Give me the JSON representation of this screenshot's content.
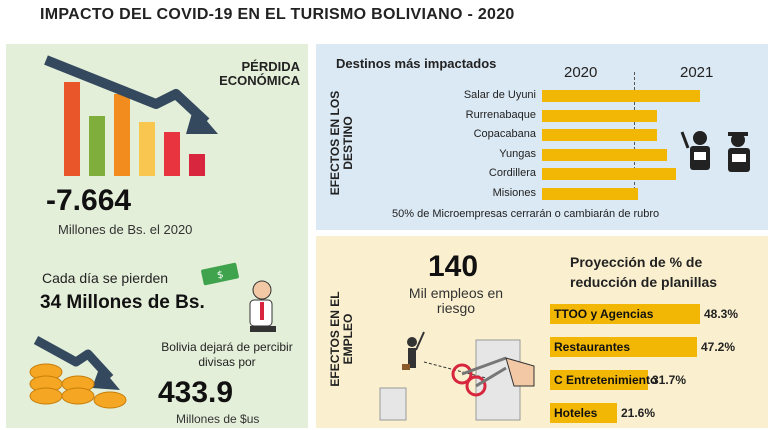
{
  "header": {
    "title": "IMPACTO DEL COVID-19 EN EL TURISMO BOLIVIANO - 2020"
  },
  "left": {
    "heading_line1": "PÉRDIDA",
    "heading_line2": "ECONÓMICA",
    "loss_value": "-7.664",
    "loss_caption": "Millones de Bs. el 2020",
    "daily_caption": "Cada día se pierden",
    "daily_value": "34 Millones de Bs.",
    "divisas_line1": "Bolivia dejará de percibir",
    "divisas_line2": "divisas por",
    "divisas_value": "433.9",
    "divisas_caption": "Millones de $us",
    "bar_colors": [
      "#e8562a",
      "#7fae3c",
      "#f28c1e",
      "#f9c74f",
      "#e8343f",
      "#d7263d"
    ]
  },
  "destinos": {
    "side_label_line1": "EFECTOS EN LOS",
    "side_label_line2": "DESTINO",
    "heading": "Destinos más impactados",
    "year_left": "2020",
    "year_right": "2021",
    "footnote": "50% de Microempresas cerrarán o cambiarán de rubro"
  },
  "empleo": {
    "side_label_line1": "EFECTOS EN EL",
    "side_label_line2": "EMPLEO",
    "jobs_value": "140",
    "jobs_caption_line1": "Mil empleos en",
    "jobs_caption_line2": "riesgo",
    "heading_line1": "Proyección de % de",
    "heading_line2": "reducción de planillas"
  },
  "chart_data": [
    {
      "type": "bar",
      "title": "Destinos más impactados",
      "orientation": "horizontal",
      "categories": [
        "Salar de Uyuni",
        "Rurrenabaque",
        "Copacabana",
        "Yungas",
        "Cordillera",
        "Misiones"
      ],
      "values": [
        1.0,
        0.73,
        0.73,
        0.79,
        0.85,
        0.61
      ],
      "xlabel": "",
      "ylabel": ""
    },
    {
      "type": "bar",
      "title": "Proyección de % de reducción de planillas",
      "orientation": "horizontal",
      "categories": [
        "TTOO y Agencias",
        "Restaurantes",
        "C Entretenimiento",
        "Hoteles"
      ],
      "values": [
        48.3,
        47.2,
        31.7,
        21.6
      ],
      "value_labels": [
        "48.3%",
        "47.2%",
        "31.7%",
        "21.6%"
      ],
      "xlabel": "",
      "ylabel": ""
    }
  ]
}
